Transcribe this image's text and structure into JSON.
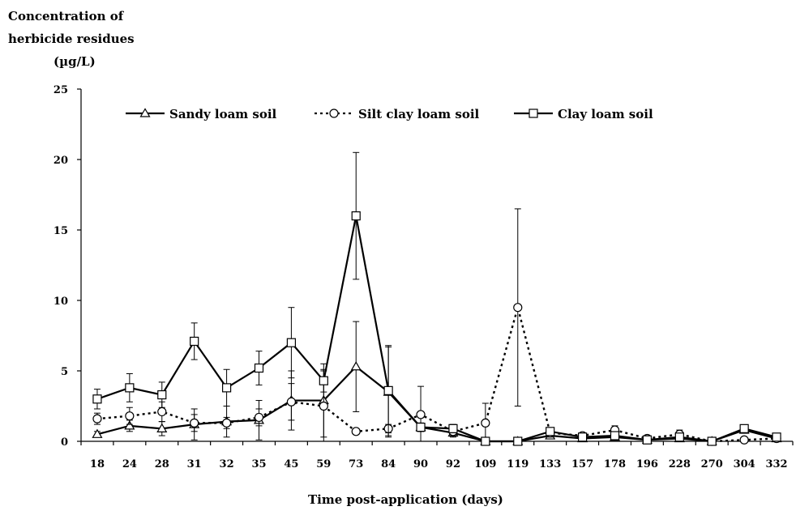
{
  "chart_data": {
    "type": "line",
    "ylabel_lines": [
      "Concentration of",
      "herbicide residues",
      "(µg/L)"
    ],
    "xlabel": "Time post-application (days)",
    "ylim": [
      0,
      25
    ],
    "yticks": [
      "0",
      "5",
      "10",
      "15",
      "20",
      "25"
    ],
    "categories": [
      "18",
      "24",
      "28",
      "31",
      "32",
      "35",
      "45",
      "59",
      "73",
      "84",
      "90",
      "92",
      "109",
      "119",
      "133",
      "157",
      "178",
      "196",
      "228",
      "270",
      "304",
      "332"
    ],
    "legend_position": "top",
    "grid": false,
    "series": [
      {
        "name": "Sandy loam soil",
        "marker": "triangle",
        "dash": "solid",
        "color": "#000000",
        "values": [
          0.5,
          1.1,
          0.9,
          1.2,
          1.4,
          1.5,
          2.9,
          2.9,
          5.3,
          3.5,
          1.0,
          0.6,
          0.0,
          0.0,
          0.4,
          0.2,
          0.3,
          0.1,
          0.2,
          0.0,
          0.8,
          0.2
        ],
        "errors": [
          0.2,
          0.4,
          0.5,
          1.1,
          1.1,
          1.4,
          2.1,
          2.6,
          3.2,
          3.2,
          0.3,
          0.3,
          0.0,
          0.0,
          0.1,
          0.1,
          0.1,
          0.1,
          0.1,
          0.0,
          0.2,
          0.1
        ]
      },
      {
        "name": "Silt clay loam soil",
        "marker": "circle",
        "dash": "dotted",
        "color": "#000000",
        "values": [
          1.6,
          1.8,
          2.1,
          1.3,
          1.3,
          1.7,
          2.8,
          2.5,
          0.7,
          0.9,
          1.9,
          0.7,
          1.3,
          9.5,
          0.6,
          0.4,
          0.8,
          0.2,
          0.5,
          0.0,
          0.1,
          0.2
        ],
        "errors": [
          0.4,
          0.6,
          0.7,
          0.6,
          0.4,
          0.6,
          1.3,
          2.5,
          0.2,
          0.3,
          2.0,
          0.3,
          1.4,
          7.0,
          0.3,
          0.2,
          0.3,
          0.1,
          0.3,
          0.0,
          0.1,
          0.1
        ]
      },
      {
        "name": "Clay loam soil",
        "marker": "square",
        "dash": "solid",
        "color": "#000000",
        "values": [
          3.0,
          3.8,
          3.3,
          7.1,
          3.8,
          5.2,
          7.0,
          4.3,
          16.0,
          3.6,
          1.0,
          0.9,
          0.0,
          0.0,
          0.7,
          0.3,
          0.4,
          0.1,
          0.3,
          0.0,
          0.9,
          0.3
        ],
        "errors": [
          0.7,
          1.0,
          0.9,
          1.3,
          1.3,
          1.2,
          2.5,
          0.8,
          4.5,
          3.2,
          0.3,
          0.3,
          0.0,
          0.0,
          0.2,
          0.1,
          0.1,
          0.1,
          0.1,
          0.0,
          0.2,
          0.1
        ]
      }
    ]
  }
}
